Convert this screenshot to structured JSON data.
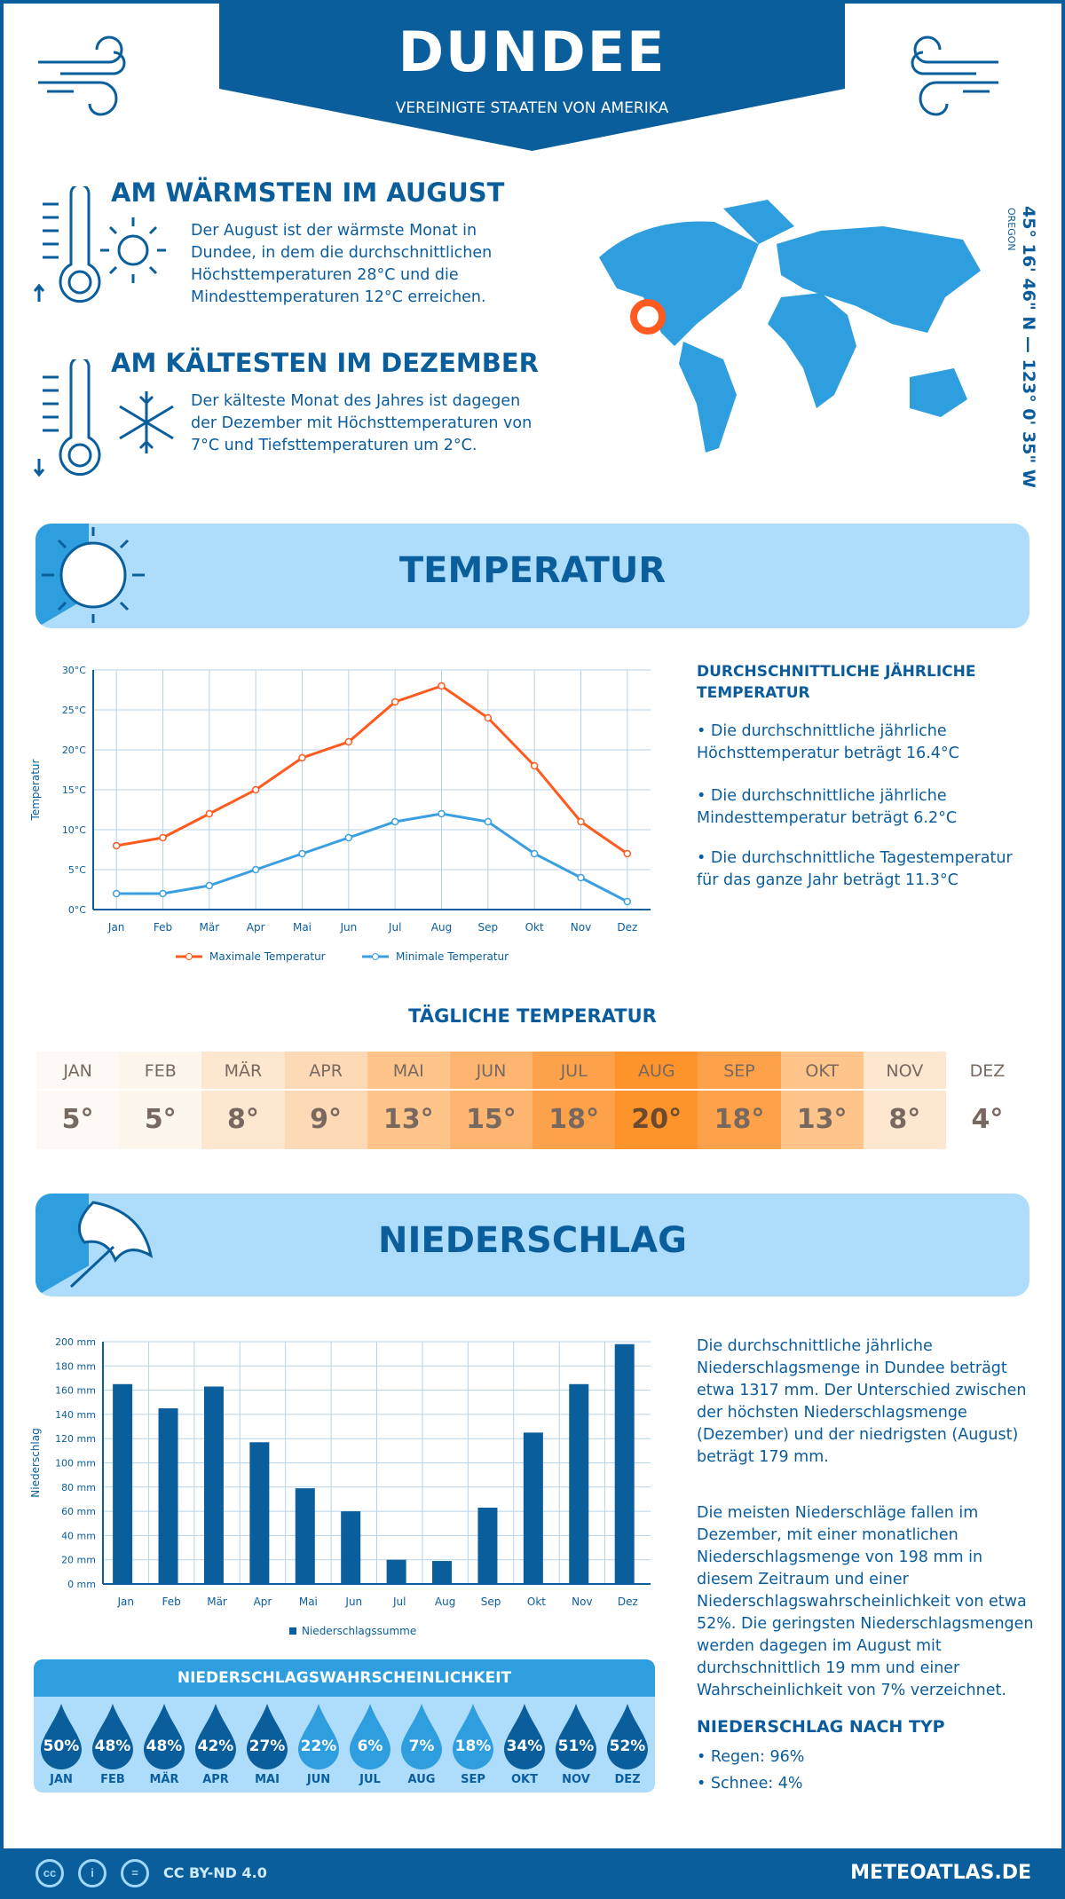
{
  "header": {
    "city": "DUNDEE",
    "country": "VEREINIGTE STAATEN VON AMERIKA"
  },
  "warmest": {
    "title": "AM WÄRMSTEN IM AUGUST",
    "text": "Der August ist der wärmste Monat in Dundee, in dem die durchschnittlichen Höchsttemperaturen 28°C und die Mindesttemperaturen 12°C erreichen."
  },
  "coldest": {
    "title": "AM KÄLTESTEN IM DEZEMBER",
    "text": "Der kälteste Monat des Jahres ist dagegen der Dezember mit Höchsttemperaturen von 7°C und Tiefsttemperaturen um 2°C."
  },
  "location": {
    "coords": "45° 16' 46\" N — 123° 0' 35\" W",
    "region": "OREGON",
    "marker_color": "#ff5a1f"
  },
  "temperature_section": {
    "title": "TEMPERATUR",
    "annual_title": "DURCHSCHNITTLICHE JÄHRLICHE TEMPERATUR",
    "bullets": [
      "• Die durchschnittliche jährliche Höchsttemperatur beträgt 16.4°C",
      "• Die durchschnittliche jährliche Mindesttemperatur beträgt 6.2°C",
      "• Die durchschnittliche Tagestemperatur für das ganze Jahr beträgt 11.3°C"
    ]
  },
  "daily": {
    "title": "TÄGLICHE TEMPERATUR",
    "months": [
      "JAN",
      "FEB",
      "MÄR",
      "APR",
      "MAI",
      "JUN",
      "JUL",
      "AUG",
      "SEP",
      "OKT",
      "NOV",
      "DEZ"
    ],
    "values": [
      "5°",
      "5°",
      "8°",
      "9°",
      "13°",
      "15°",
      "18°",
      "20°",
      "18°",
      "13°",
      "8°",
      "4°"
    ],
    "colors": [
      "#fef9f4",
      "#fdf6ec",
      "#fee7d0",
      "#fed9b6",
      "#fec48a",
      "#feb570",
      "#fda24b",
      "#fc932b",
      "#fda24b",
      "#fec48a",
      "#fee7d0",
      "#ffffff"
    ]
  },
  "precip_section": {
    "title": "NIEDERSCHLAG",
    "text1": "Die durchschnittliche jährliche Niederschlagsmenge in Dundee beträgt etwa 1317 mm. Der Unterschied zwischen der höchsten Niederschlagsmenge (Dezember) und der niedrigsten (August) beträgt 179 mm.",
    "text2": "Die meisten Niederschläge fallen im Dezember, mit einer monatlichen Niederschlagsmenge von 198 mm in diesem Zeitraum und einer Niederschlagswahrscheinlichkeit von etwa 52%. Die geringsten Niederschlagsmengen werden dagegen im August mit durchschnittlich 19 mm und einer Wahrscheinlichkeit von 7% verzeichnet.",
    "type_title": "NIEDERSCHLAG NACH TYP",
    "types": [
      "• Regen: 96%",
      "• Schnee: 4%"
    ]
  },
  "probability": {
    "title": "NIEDERSCHLAGSWAHRSCHEINLICHKEIT",
    "months": [
      "JAN",
      "FEB",
      "MÄR",
      "APR",
      "MAI",
      "JUN",
      "JUL",
      "AUG",
      "SEP",
      "OKT",
      "NOV",
      "DEZ"
    ],
    "values": [
      "50%",
      "48%",
      "48%",
      "42%",
      "27%",
      "22%",
      "6%",
      "7%",
      "18%",
      "34%",
      "51%",
      "52%"
    ],
    "colors": {
      "high": "#0a5e9c",
      "low": "#2e9ede"
    }
  },
  "footer": {
    "license": "CC BY-ND 4.0",
    "site": "METEOATLAS.DE"
  },
  "chart_data": [
    {
      "type": "line",
      "categories": [
        "Jan",
        "Feb",
        "Mär",
        "Apr",
        "Mai",
        "Jun",
        "Jul",
        "Aug",
        "Sep",
        "Okt",
        "Nov",
        "Dez"
      ],
      "ylabel": "Temperatur",
      "ylim": [
        0,
        30
      ],
      "yticks": [
        "0°C",
        "5°C",
        "10°C",
        "15°C",
        "20°C",
        "25°C",
        "30°C"
      ],
      "grid": true,
      "legend": "bottom",
      "series": [
        {
          "name": "Maximale Temperatur",
          "color": "#ff5a1f",
          "values": [
            8,
            9,
            12,
            15,
            19,
            21,
            26,
            28,
            24,
            18,
            11,
            7
          ]
        },
        {
          "name": "Minimale Temperatur",
          "color": "#3a9fe0",
          "values": [
            2,
            2,
            3,
            5,
            7,
            9,
            11,
            12,
            11,
            7,
            4,
            1
          ]
        }
      ]
    },
    {
      "type": "bar",
      "categories": [
        "Jan",
        "Feb",
        "Mär",
        "Apr",
        "Mai",
        "Jun",
        "Jul",
        "Aug",
        "Sep",
        "Okt",
        "Nov",
        "Dez"
      ],
      "ylabel": "Niederschlag",
      "ylim": [
        0,
        200
      ],
      "yticks": [
        "0 mm",
        "20 mm",
        "40 mm",
        "60 mm",
        "80 mm",
        "100 mm",
        "120 mm",
        "140 mm",
        "160 mm",
        "180 mm",
        "200 mm"
      ],
      "grid": true,
      "legend": "bottom",
      "series": [
        {
          "name": "Niederschlagssumme",
          "color": "#0a5e9c",
          "values": [
            165,
            145,
            163,
            117,
            79,
            60,
            20,
            19,
            63,
            125,
            165,
            198
          ]
        }
      ]
    }
  ]
}
